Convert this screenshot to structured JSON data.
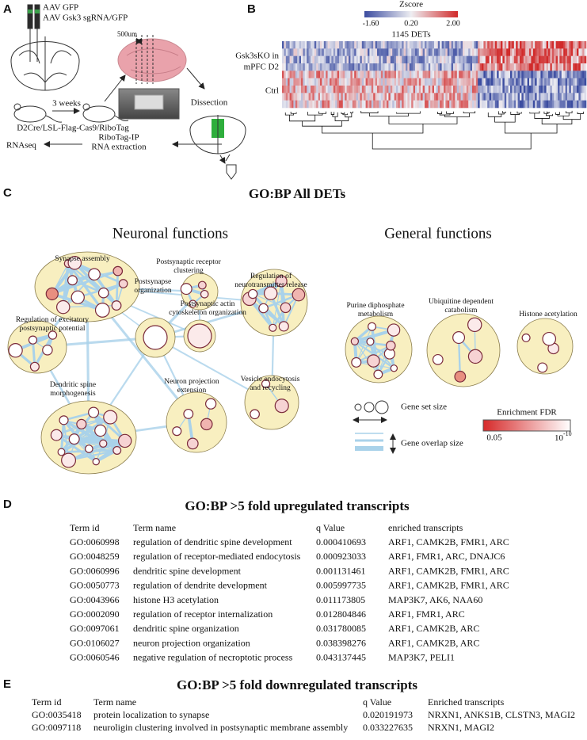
{
  "panel_a": {
    "label": "A",
    "virus_1": "AAV GFP",
    "virus_2": "AAV Gsk3 sgRNA/GFP",
    "slice": "500um",
    "wait": "3 weeks",
    "mouse_line": "D2Cre/LSL-Flag-Cas9/RiboTag",
    "dissection": "Dissection",
    "ip": [
      "RiboTag-IP",
      "RNA extraction"
    ],
    "seq": "RNAseq"
  },
  "panel_b": {
    "label": "B",
    "colorbar_title": "Zscore",
    "colorbar_ticks": [
      "-1.60",
      "0.20",
      "2.00"
    ],
    "subtitle": "1145 DETs",
    "row_group_1": [
      "Gsk3sKO in",
      "mPFC D2"
    ],
    "row_group_2": "Ctrl"
  },
  "panel_c": {
    "label": "C",
    "title": "GO:BP All DETs",
    "group_1": "Neuronal functions",
    "group_2": "General functions",
    "clusters": [
      {
        "label": [
          "Synapse assembly"
        ]
      },
      {
        "label": [
          "Postsynaptic receptor",
          "clustering"
        ]
      },
      {
        "label": [
          "Regulation of",
          "neurotransmitter release"
        ]
      },
      {
        "label": [
          "Regulation of excitatory",
          "postsynaptic potential"
        ]
      },
      {
        "label": [
          "Postsynapse",
          "organization"
        ]
      },
      {
        "label": [
          "Postsynaptic actin",
          "cytoskeleton organization"
        ]
      },
      {
        "label": [
          "Vesicle endocytosis",
          "and recycling"
        ]
      },
      {
        "label": [
          "Neuron projection",
          "extension"
        ]
      },
      {
        "label": [
          "Dendritic spine",
          "morphogenesis"
        ]
      },
      {
        "label": [
          "Purine diphosphate",
          "metabolism"
        ]
      },
      {
        "label": [
          "Ubiquitine dependent",
          "catabolism"
        ]
      },
      {
        "label": [
          "Histone acetylation"
        ]
      }
    ],
    "legend_size": "Gene set size",
    "legend_overlap": "Gene overlap size",
    "legend_fdr": "Enrichment FDR",
    "fdr_min": "0.05",
    "fdr_max": {
      "base": "10",
      "exponent": "-10"
    }
  },
  "panel_d": {
    "label": "D",
    "title": "GO:BP >5 fold upregulated transcripts",
    "header": [
      "Term id",
      "Term name",
      "q Value",
      "enriched transcripts"
    ],
    "rows": [
      [
        "GO:0060998",
        "regulation of dendritic spine development",
        "0.000410693",
        "ARF1, CAMK2B, FMR1, ARC"
      ],
      [
        "GO:0048259",
        "regulation of receptor-mediated endocytosis",
        "0.000923033",
        "ARF1, FMR1, ARC, DNAJC6"
      ],
      [
        "GO:0060996",
        "dendritic spine development",
        "0.001131461",
        "ARF1, CAMK2B, FMR1, ARC"
      ],
      [
        "GO:0050773",
        "regulation of dendrite development",
        "0.005997735",
        "ARF1, CAMK2B, FMR1, ARC"
      ],
      [
        "GO:0043966",
        "histone H3 acetylation",
        "0.011173805",
        "MAP3K7, AK6, NAA60"
      ],
      [
        "GO:0002090",
        "regulation of receptor internalization",
        "0.012804846",
        "ARF1, FMR1, ARC"
      ],
      [
        "GO:0097061",
        "dendritic spine organization",
        "0.031780085",
        "ARF1, CAMK2B, ARC"
      ],
      [
        "GO:0106027",
        "neuron projection organization",
        "0.038398276",
        "ARF1, CAMK2B, ARC"
      ],
      [
        "GO:0060546",
        "negative regulation of necroptotic process",
        "0.043137445",
        "MAP3K7, PELI1"
      ]
    ]
  },
  "panel_e": {
    "label": "E",
    "title": "GO:BP >5 fold downregulated transcripts",
    "header": [
      "Term id",
      "Term name",
      "q Value",
      "Enriched transcripts"
    ],
    "rows": [
      [
        "GO:0035418",
        "protein localization to synapse",
        "0.020191973",
        "NRXN1, ANKS1B, CLSTN3, MAGI2"
      ],
      [
        "GO:0097118",
        "neuroligin clustering involved in postsynaptic membrane assembly",
        "0.033227635",
        "NRXN1, MAGI2"
      ]
    ]
  }
}
